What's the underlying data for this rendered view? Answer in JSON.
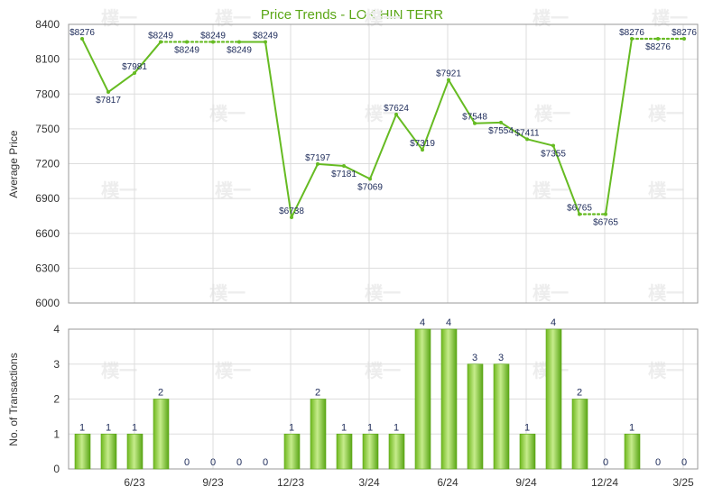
{
  "chart_data": [
    {
      "type": "line",
      "title": "Price Trends - LOK HIN TERR",
      "ylabel": "Average Price",
      "ylim": [
        6000,
        8400
      ],
      "yticks": [
        6000,
        6300,
        6600,
        6900,
        7200,
        7500,
        7800,
        8100,
        8400
      ],
      "x_tick_labels": [
        "6/23",
        "9/23",
        "12/23",
        "3/24",
        "6/24",
        "9/24",
        "12/24",
        "3/25"
      ],
      "grid": true,
      "series": [
        {
          "values": [
            8276,
            7817,
            7981,
            8249,
            8249,
            8249,
            8249,
            8249,
            6738,
            7197,
            7181,
            7069,
            7624,
            7319,
            7921,
            7548,
            7554,
            7411,
            7355,
            6765,
            6765,
            8276,
            8276,
            8276
          ],
          "labels": [
            "$8276",
            "$7817",
            "$7981",
            "$8249",
            "$8249",
            "$8249",
            "$8249",
            "$8249",
            "$6738",
            "$7197",
            "$7181",
            "$7069",
            "$7624",
            "$7319",
            "$7921",
            "$7548",
            "$7554",
            "$7411",
            "$7355",
            "$6765",
            "$6765",
            "$8276",
            "$8276",
            "$8276"
          ],
          "estimated": [
            false,
            false,
            false,
            false,
            true,
            true,
            true,
            false,
            false,
            false,
            false,
            false,
            false,
            false,
            false,
            false,
            false,
            false,
            false,
            false,
            true,
            false,
            true,
            true
          ],
          "color": "#66bb22"
        }
      ]
    },
    {
      "type": "bar",
      "ylabel": "No. of Transactions",
      "ylim": [
        0,
        4
      ],
      "yticks": [
        0,
        1,
        2,
        3,
        4
      ],
      "x_tick_labels": [
        "6/23",
        "9/23",
        "12/23",
        "3/24",
        "6/24",
        "9/24",
        "12/24",
        "3/25"
      ],
      "grid": true,
      "series": [
        {
          "values": [
            1,
            1,
            1,
            2,
            0,
            0,
            0,
            0,
            1,
            2,
            1,
            1,
            1,
            4,
            4,
            3,
            3,
            1,
            4,
            2,
            0,
            1,
            0,
            0
          ],
          "color": "#66bb22"
        }
      ]
    }
  ],
  "watermark": "樸一"
}
